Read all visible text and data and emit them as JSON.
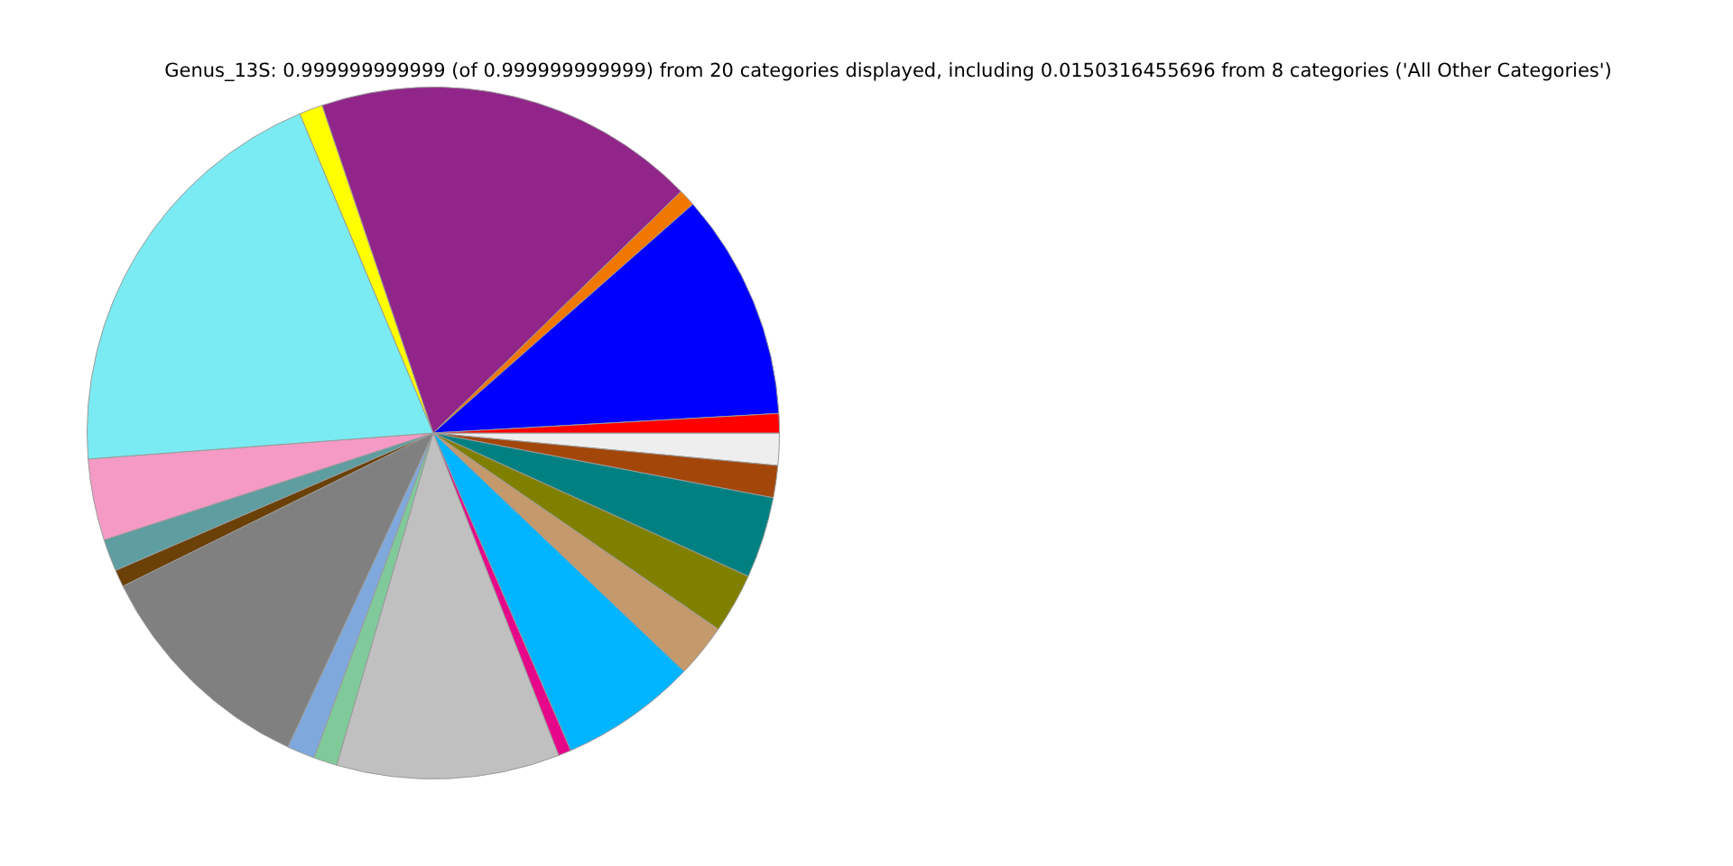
{
  "chart_data": {
    "type": "pie",
    "title": "Genus_13S: 0.999999999999 (of 0.999999999999) from 20 categories displayed, including 0.0150316455696 from 8 categories ('All Other Categories')",
    "categories": [
      null,
      null,
      null,
      null,
      null,
      null,
      null,
      null,
      null,
      null,
      null,
      null,
      null,
      null,
      null,
      null,
      null,
      null,
      null,
      null
    ],
    "values": [
      1.5,
      1.5,
      3.8,
      2.8,
      2.5,
      6.4,
      0.6,
      10.4,
      1.1,
      1.3,
      10.8,
      0.8,
      1.5,
      3.8,
      19.9,
      1.1,
      17.9,
      0.8,
      10.6,
      0.9
    ],
    "colors": [
      "#eeeeee",
      "#a3460a",
      "#008080",
      "#808000",
      "#c49a6c",
      "#00b4ff",
      "#e6068a",
      "#c0c0c0",
      "#80c99b",
      "#7fa9dc",
      "#808080",
      "#6b4108",
      "#5f9ea0",
      "#f49ac5",
      "#7aebf2",
      "#ffff00",
      "#912589",
      "#f07800",
      "#0000ff",
      "#ff0000"
    ]
  }
}
